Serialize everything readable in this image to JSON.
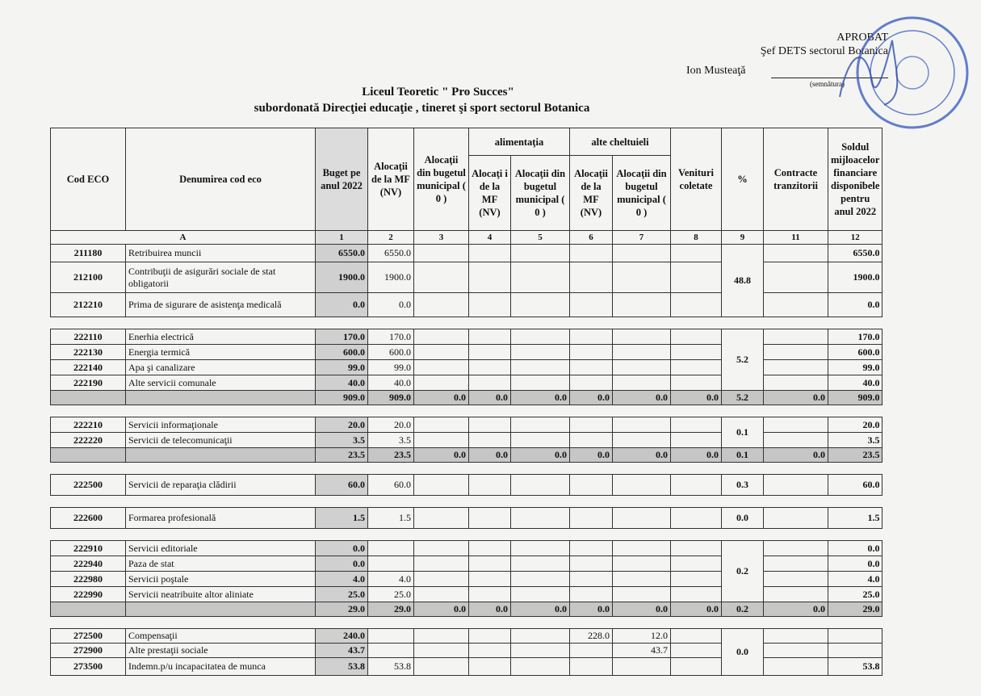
{
  "approval": {
    "label": "APROBAT",
    "position": "Şef  DETS sectorul Botanica",
    "name": "Ion Musteaţă",
    "signature_caption": "(semnătura)",
    "stamp_text": "MINISTERUL EDUCAŢIEI, CERCETĂRII AL REPUBLICII MOLDOVA · DIRECŢIA EDUCAŢIE, TINERET ŞI SPORT SECTORUL BOTANICA · CONSILIUL MUNICIPAL CHIŞINĂU · 1007601010448"
  },
  "title": {
    "line1": "Liceul Teoretic  \" Pro Succes\"",
    "line2": "subordonată Direcţiei educaţie , tineret şi sport sectorul Botanica"
  },
  "headers": {
    "cod": "Cod ECO",
    "name": "Denumirea cod eco",
    "buget": "Buget pe anul 2022",
    "mf": "Alocaţii de la MF (NV)",
    "mun": "Alocaţii din bugetul municipal ( 0 )",
    "alimentatia": "alimentaţia",
    "alim_mf": "Alocaţi i de la MF (NV)",
    "alim_mun": "Alocaţii din bugetul municipal ( 0 )",
    "alte": "alte cheltuieli",
    "alt_mf": "Alocaţii de la MF (NV)",
    "alt_mun": "Alocaţii din bugetul municipal ( 0 )",
    "venituri": "Venituri coletate",
    "pct": "%",
    "contracte": "Contracte tranzitorii",
    "sold": "Soldul mijloacelor financiare disponibele pentru anul 2022"
  },
  "column_index": [
    "A",
    "1",
    "2",
    "3",
    "4",
    "5",
    "6",
    "7",
    "8",
    "9",
    "11",
    "12"
  ],
  "groups": [
    {
      "pct": "48.8",
      "rows": [
        {
          "cod": "211180",
          "name": "Retribuirea muncii",
          "v": [
            "6550.0",
            "6550.0",
            "",
            "",
            "",
            "",
            "",
            "",
            "",
            "6550.0"
          ],
          "h": 22
        },
        {
          "cod": "212100",
          "name": "Contribuţii de asigurări sociale de stat obligatorii",
          "v": [
            "1900.0",
            "1900.0",
            "",
            "",
            "",
            "",
            "",
            "",
            "",
            "1900.0"
          ],
          "h": 38
        },
        {
          "cod": "212210",
          "name": "Prima de sigurare de asistenţa medicală",
          "v": [
            "0.0",
            "0.0",
            "",
            "",
            "",
            "",
            "",
            "",
            "",
            "0.0"
          ],
          "h": 30
        }
      ]
    },
    {
      "pct": "5.2",
      "rows": [
        {
          "cod": "222110",
          "name": "Enerhia electrică",
          "v": [
            "170.0",
            "170.0",
            "",
            "",
            "",
            "",
            "",
            "",
            "",
            "170.0"
          ],
          "h": 19
        },
        {
          "cod": "222130",
          "name": "Energia termică",
          "v": [
            "600.0",
            "600.0",
            "",
            "",
            "",
            "",
            "",
            "",
            "",
            "600.0"
          ],
          "h": 19
        },
        {
          "cod": "222140",
          "name": "Apa şi canalizare",
          "v": [
            "99.0",
            "99.0",
            "",
            "",
            "",
            "",
            "",
            "",
            "",
            "99.0"
          ],
          "h": 19
        },
        {
          "cod": "222190",
          "name": "Alte servicii comunale",
          "v": [
            "40.0",
            "40.0",
            "",
            "",
            "",
            "",
            "",
            "",
            "",
            "40.0"
          ],
          "h": 19
        }
      ],
      "total": [
        "909.0",
        "909.0",
        "0.0",
        "0.0",
        "0.0",
        "0.0",
        "0.0",
        "0.0",
        "5.2",
        "0.0",
        "909.0"
      ]
    },
    {
      "pct": "0.1",
      "rows": [
        {
          "cod": "222210",
          "name": "Servicii informaţionale",
          "v": [
            "20.0",
            "20.0",
            "",
            "",
            "",
            "",
            "",
            "",
            "",
            "20.0"
          ],
          "h": 19
        },
        {
          "cod": "222220",
          "name": "Servicii de telecomunicaţii",
          "v": [
            "3.5",
            "3.5",
            "",
            "",
            "",
            "",
            "",
            "",
            "",
            "3.5"
          ],
          "h": 19
        }
      ],
      "total": [
        "23.5",
        "23.5",
        "0.0",
        "0.0",
        "0.0",
        "0.0",
        "0.0",
        "0.0",
        "0.1",
        "0.0",
        "23.5"
      ]
    },
    {
      "pct": "0.3",
      "rows": [
        {
          "cod": "222500",
          "name": "Servicii de reparaţia clădirii",
          "v": [
            "60.0",
            "60.0",
            "",
            "",
            "",
            "",
            "",
            "",
            "",
            "60.0"
          ],
          "h": 26
        }
      ]
    },
    {
      "pct": "0.0",
      "rows": [
        {
          "cod": "222600",
          "name": "Formarea profesională",
          "v": [
            "1.5",
            "1.5",
            "",
            "",
            "",
            "",
            "",
            "",
            "",
            "1.5"
          ],
          "h": 26
        }
      ]
    },
    {
      "pct": "0.2",
      "rows": [
        {
          "cod": "222910",
          "name": "Servicii editoriale",
          "v": [
            "0.0",
            "",
            "",
            "",
            "",
            "",
            "",
            "",
            "",
            "0.0"
          ],
          "h": 19
        },
        {
          "cod": "222940",
          "name": "Paza de stat",
          "v": [
            "0.0",
            "",
            "",
            "",
            "",
            "",
            "",
            "",
            "",
            "0.0"
          ],
          "h": 19
        },
        {
          "cod": "222980",
          "name": "Servicii poştale",
          "v": [
            "4.0",
            "4.0",
            "",
            "",
            "",
            "",
            "",
            "",
            "",
            "4.0"
          ],
          "h": 19
        },
        {
          "cod": "222990",
          "name": "Servicii neatribuite altor aliniate",
          "v": [
            "25.0",
            "25.0",
            "",
            "",
            "",
            "",
            "",
            "",
            "",
            "25.0"
          ],
          "h": 19
        }
      ],
      "total": [
        "29.0",
        "29.0",
        "0.0",
        "0.0",
        "0.0",
        "0.0",
        "0.0",
        "0.0",
        "0.2",
        "0.0",
        "29.0"
      ]
    },
    {
      "pct": "0.0",
      "rows": [
        {
          "cod": "272500",
          "name": "Compensaţii",
          "v": [
            "240.0",
            "",
            "",
            "",
            "",
            "228.0",
            "12.0",
            "",
            "",
            ""
          ],
          "h": 18
        },
        {
          "cod": "272900",
          "name": "Alte prestaţii sociale",
          "v": [
            "43.7",
            "",
            "",
            "",
            "",
            "",
            "43.7",
            "",
            "",
            ""
          ],
          "h": 18
        },
        {
          "cod": "273500",
          "name": "Indemn.p/u incapacitatea de munca",
          "v": [
            "53.8",
            "53.8",
            "",
            "",
            "",
            "",
            "",
            "",
            "",
            "53.8"
          ],
          "h": 22
        }
      ]
    }
  ]
}
